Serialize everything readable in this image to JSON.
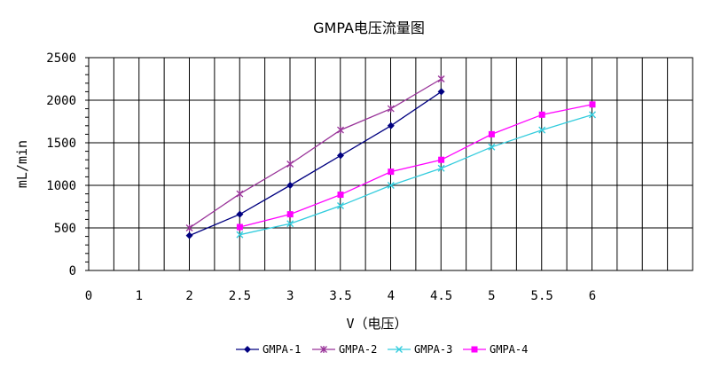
{
  "chart_data": {
    "type": "line",
    "title": "GMPA电压流量图",
    "xlabel": "V（电压）",
    "ylabel": "mL/min",
    "xlim": [
      0,
      6
    ],
    "ylim": [
      0,
      2500
    ],
    "x_ticks": [
      "0",
      "1",
      "2",
      "2.5",
      "3",
      "3.5",
      "4",
      "4.5",
      "5",
      "5.5",
      "6"
    ],
    "y_ticks": [
      "0",
      "500",
      "1000",
      "1500",
      "2000",
      "2500"
    ],
    "grid": true,
    "legend_position": "bottom",
    "series": [
      {
        "name": "GMPA-1",
        "color": "#000080",
        "marker": "diamond",
        "x": [
          2,
          2.5,
          3,
          3.5,
          4,
          4.5
        ],
        "values": [
          410,
          660,
          1000,
          1350,
          1700,
          2100
        ]
      },
      {
        "name": "GMPA-2",
        "color": "#993399",
        "marker": "star",
        "x": [
          2,
          2.5,
          3,
          3.5,
          4,
          4.5
        ],
        "values": [
          500,
          900,
          1250,
          1650,
          1900,
          2250
        ]
      },
      {
        "name": "GMPA-3",
        "color": "#33CCDD",
        "marker": "x",
        "x": [
          2.5,
          3,
          3.5,
          4,
          4.5,
          5,
          5.5,
          6
        ],
        "values": [
          420,
          550,
          760,
          1000,
          1200,
          1450,
          1650,
          1830
        ]
      },
      {
        "name": "GMPA-4",
        "color": "#FF00FF",
        "marker": "square",
        "x": [
          2.5,
          3,
          3.5,
          4,
          4.5,
          5,
          5.5,
          6
        ],
        "values": [
          510,
          660,
          890,
          1160,
          1300,
          1600,
          1830,
          1950
        ]
      }
    ]
  }
}
